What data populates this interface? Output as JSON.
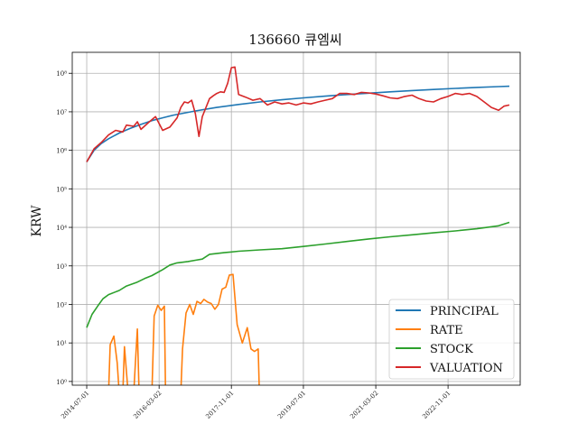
{
  "chart_data": {
    "type": "line",
    "title": "136660 큐엠씨",
    "xlabel": "",
    "ylabel": "KRW",
    "y_scale": "log",
    "ylim": [
      0.8,
      350000000
    ],
    "xlim": [
      "2014-03-01",
      "2024-07-01"
    ],
    "x_ticks": [
      "2014-07-01",
      "2016-03-02",
      "2017-11-01",
      "2019-07-01",
      "2021-03-02",
      "2022-11-01"
    ],
    "y_ticks": [
      {
        "value": 1,
        "label": "10⁰"
      },
      {
        "value": 10,
        "label": "10¹"
      },
      {
        "value": 100,
        "label": "10²"
      },
      {
        "value": 1000,
        "label": "10³"
      },
      {
        "value": 10000,
        "label": "10⁴"
      },
      {
        "value": 100000,
        "label": "10⁵"
      },
      {
        "value": 1000000,
        "label": "10⁶"
      },
      {
        "value": 10000000,
        "label": "10⁷"
      },
      {
        "value": 100000000,
        "label": "10⁸"
      }
    ],
    "grid": true,
    "legend_position": "bottom-right",
    "series": [
      {
        "name": "PRINCIPAL",
        "color": "#1f77b4",
        "points": [
          [
            "2014-07-01",
            500000
          ],
          [
            "2014-09-01",
            1000000
          ],
          [
            "2014-11-01",
            1500000
          ],
          [
            "2015-01-01",
            2000000
          ],
          [
            "2015-04-01",
            2800000
          ],
          [
            "2015-07-01",
            3700000
          ],
          [
            "2015-10-01",
            4700000
          ],
          [
            "2016-01-01",
            5900000
          ],
          [
            "2016-04-01",
            7000000
          ],
          [
            "2016-07-01",
            8200000
          ],
          [
            "2017-01-01",
            10500000
          ],
          [
            "2017-07-01",
            13000000
          ],
          [
            "2018-01-01",
            15500000
          ],
          [
            "2018-07-01",
            18000000
          ],
          [
            "2019-01-01",
            20500000
          ],
          [
            "2019-07-01",
            23000000
          ],
          [
            "2020-01-01",
            25500000
          ],
          [
            "2020-07-01",
            28000000
          ],
          [
            "2021-01-01",
            30500000
          ],
          [
            "2021-07-01",
            33000000
          ],
          [
            "2022-01-01",
            35500000
          ],
          [
            "2022-07-01",
            38000000
          ],
          [
            "2023-01-01",
            40500000
          ],
          [
            "2023-07-01",
            43000000
          ],
          [
            "2024-01-01",
            45000000
          ],
          [
            "2024-04-01",
            46000000
          ]
        ]
      },
      {
        "name": "RATE",
        "color": "#ff7f0e",
        "points": [
          [
            "2014-07-01",
            0.5
          ],
          [
            "2015-01-01",
            0.5
          ],
          [
            "2015-01-15",
            9
          ],
          [
            "2015-02-15",
            15
          ],
          [
            "2015-03-15",
            3
          ],
          [
            "2015-04-01",
            0.5
          ],
          [
            "2015-05-01",
            0.5
          ],
          [
            "2015-05-15",
            8
          ],
          [
            "2015-06-15",
            0.5
          ],
          [
            "2015-08-01",
            0.5
          ],
          [
            "2015-08-15",
            3
          ],
          [
            "2015-09-01",
            23
          ],
          [
            "2015-09-15",
            0.5
          ],
          [
            "2016-01-01",
            0.5
          ],
          [
            "2016-01-20",
            50
          ],
          [
            "2016-02-20",
            95
          ],
          [
            "2016-03-20",
            70
          ],
          [
            "2016-04-15",
            90
          ],
          [
            "2016-04-25",
            0.5
          ],
          [
            "2016-09-01",
            0.5
          ],
          [
            "2016-09-15",
            7
          ],
          [
            "2016-10-15",
            60
          ],
          [
            "2016-11-15",
            100
          ],
          [
            "2016-12-15",
            55
          ],
          [
            "2017-01-15",
            120
          ],
          [
            "2017-02-15",
            105
          ],
          [
            "2017-03-15",
            135
          ],
          [
            "2017-04-15",
            115
          ],
          [
            "2017-05-15",
            105
          ],
          [
            "2017-06-15",
            75
          ],
          [
            "2017-07-15",
            100
          ],
          [
            "2017-08-15",
            250
          ],
          [
            "2017-09-15",
            280
          ],
          [
            "2017-10-15",
            580
          ],
          [
            "2017-11-15",
            600
          ],
          [
            "2017-12-20",
            30
          ],
          [
            "2018-02-01",
            10
          ],
          [
            "2018-03-15",
            25
          ],
          [
            "2018-04-15",
            7
          ],
          [
            "2018-05-15",
            6
          ],
          [
            "2018-06-15",
            7
          ],
          [
            "2018-06-25",
            0.5
          ]
        ]
      },
      {
        "name": "STOCK",
        "color": "#2ca02c",
        "points": [
          [
            "2014-07-01",
            25
          ],
          [
            "2014-08-15",
            55
          ],
          [
            "2014-10-01",
            90
          ],
          [
            "2014-11-15",
            140
          ],
          [
            "2015-01-01",
            180
          ],
          [
            "2015-04-01",
            230
          ],
          [
            "2015-06-01",
            300
          ],
          [
            "2015-09-01",
            380
          ],
          [
            "2015-11-01",
            470
          ],
          [
            "2016-01-01",
            560
          ],
          [
            "2016-04-01",
            800
          ],
          [
            "2016-06-01",
            1050
          ],
          [
            "2016-08-01",
            1200
          ],
          [
            "2016-11-01",
            1300
          ],
          [
            "2017-01-01",
            1400
          ],
          [
            "2017-03-01",
            1500
          ],
          [
            "2017-05-01",
            2000
          ],
          [
            "2017-09-01",
            2200
          ],
          [
            "2018-01-01",
            2400
          ],
          [
            "2018-07-01",
            2600
          ],
          [
            "2019-01-01",
            2800
          ],
          [
            "2019-07-01",
            3200
          ],
          [
            "2020-01-01",
            3700
          ],
          [
            "2020-07-01",
            4300
          ],
          [
            "2021-01-01",
            5000
          ],
          [
            "2021-07-01",
            5700
          ],
          [
            "2022-01-01",
            6400
          ],
          [
            "2022-07-01",
            7200
          ],
          [
            "2023-01-01",
            8100
          ],
          [
            "2023-07-01",
            9200
          ],
          [
            "2024-01-01",
            11000
          ],
          [
            "2024-04-01",
            13500
          ]
        ]
      },
      {
        "name": "VALUATION",
        "color": "#d62728",
        "points": [
          [
            "2014-07-01",
            500000
          ],
          [
            "2014-09-01",
            1100000
          ],
          [
            "2014-11-01",
            1600000
          ],
          [
            "2015-01-01",
            2500000
          ],
          [
            "2015-03-01",
            3300000
          ],
          [
            "2015-05-01",
            3000000
          ],
          [
            "2015-06-01",
            4500000
          ],
          [
            "2015-08-01",
            4200000
          ],
          [
            "2015-09-01",
            5500000
          ],
          [
            "2015-10-01",
            3500000
          ],
          [
            "2015-12-01",
            5200000
          ],
          [
            "2016-02-01",
            7500000
          ],
          [
            "2016-04-01",
            3300000
          ],
          [
            "2016-06-01",
            4000000
          ],
          [
            "2016-08-01",
            7000000
          ],
          [
            "2016-09-01",
            13000000
          ],
          [
            "2016-10-01",
            18000000
          ],
          [
            "2016-11-01",
            17000000
          ],
          [
            "2016-12-01",
            20000000
          ],
          [
            "2017-01-01",
            9000000
          ],
          [
            "2017-02-01",
            2300000
          ],
          [
            "2017-03-01",
            7500000
          ],
          [
            "2017-05-01",
            22000000
          ],
          [
            "2017-06-01",
            26000000
          ],
          [
            "2017-07-01",
            30000000
          ],
          [
            "2017-08-01",
            33000000
          ],
          [
            "2017-09-01",
            32000000
          ],
          [
            "2017-10-01",
            55000000
          ],
          [
            "2017-11-01",
            140000000
          ],
          [
            "2017-12-01",
            145000000
          ],
          [
            "2018-01-01",
            28000000
          ],
          [
            "2018-03-01",
            24000000
          ],
          [
            "2018-05-01",
            20000000
          ],
          [
            "2018-07-01",
            22000000
          ],
          [
            "2018-09-01",
            15000000
          ],
          [
            "2018-11-01",
            18000000
          ],
          [
            "2019-01-01",
            16000000
          ],
          [
            "2019-03-01",
            17000000
          ],
          [
            "2019-05-01",
            15000000
          ],
          [
            "2019-07-01",
            17000000
          ],
          [
            "2019-09-01",
            16000000
          ],
          [
            "2019-11-01",
            18000000
          ],
          [
            "2020-01-01",
            20000000
          ],
          [
            "2020-03-01",
            22000000
          ],
          [
            "2020-05-01",
            30000000
          ],
          [
            "2020-07-01",
            30000000
          ],
          [
            "2020-09-01",
            28000000
          ],
          [
            "2020-11-01",
            32000000
          ],
          [
            "2021-01-01",
            31000000
          ],
          [
            "2021-03-01",
            29000000
          ],
          [
            "2021-05-01",
            26000000
          ],
          [
            "2021-07-01",
            23000000
          ],
          [
            "2021-09-01",
            22000000
          ],
          [
            "2021-11-01",
            25000000
          ],
          [
            "2022-01-01",
            27000000
          ],
          [
            "2022-03-01",
            22000000
          ],
          [
            "2022-05-01",
            19000000
          ],
          [
            "2022-07-01",
            18000000
          ],
          [
            "2022-09-01",
            22000000
          ],
          [
            "2022-11-01",
            25000000
          ],
          [
            "2023-01-01",
            30000000
          ],
          [
            "2023-03-01",
            28000000
          ],
          [
            "2023-05-01",
            30000000
          ],
          [
            "2023-07-01",
            25000000
          ],
          [
            "2023-09-01",
            18000000
          ],
          [
            "2023-11-01",
            13000000
          ],
          [
            "2024-01-01",
            11000000
          ],
          [
            "2024-02-15",
            14000000
          ],
          [
            "2024-04-01",
            15000000
          ]
        ]
      }
    ]
  }
}
